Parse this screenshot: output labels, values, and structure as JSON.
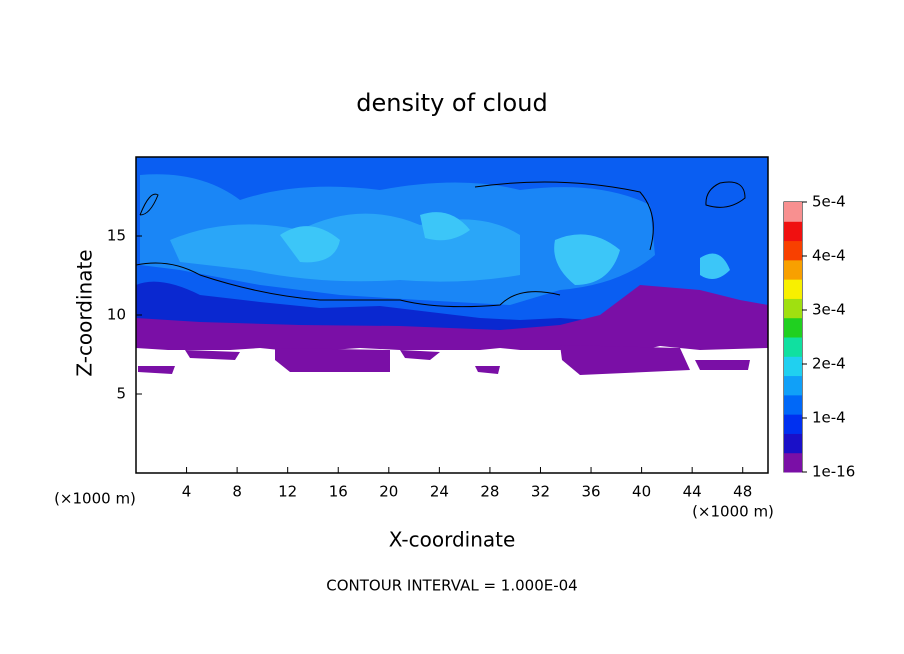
{
  "chart_data": {
    "type": "contour",
    "title": "density of cloud",
    "x_label": "X-coordinate",
    "y_label": "Z-coordinate",
    "x_unit": "(×1000 m)",
    "y_unit": "(×1000 m)",
    "annotation": "CONTOUR INTERVAL = 1.000E-04",
    "xlim": [
      0,
      50
    ],
    "xticks": [
      4,
      8,
      12,
      16,
      20,
      24,
      28,
      32,
      36,
      40,
      44,
      48
    ],
    "ylim": [
      0,
      20
    ],
    "yticks": [
      5,
      10,
      15
    ],
    "clim": [
      1e-16,
      0.0005
    ],
    "cticks": [
      {
        "value": 1e-16,
        "label": "1e-16"
      },
      {
        "value": 0.0001,
        "label": "1e-4"
      },
      {
        "value": 0.0002,
        "label": "2e-4"
      },
      {
        "value": 0.0003,
        "label": "3e-4"
      },
      {
        "value": 0.0004,
        "label": "4e-4"
      },
      {
        "value": 0.0005,
        "label": "5e-4"
      }
    ],
    "colors": [
      "#7a0fa6",
      "#1a10c8",
      "#0030f0",
      "#0068f8",
      "#10a0f8",
      "#20d0f0",
      "#10e0a0",
      "#20d020",
      "#a0e010",
      "#f8f000",
      "#f8a000",
      "#f84000",
      "#f01010",
      "#f89090"
    ]
  }
}
